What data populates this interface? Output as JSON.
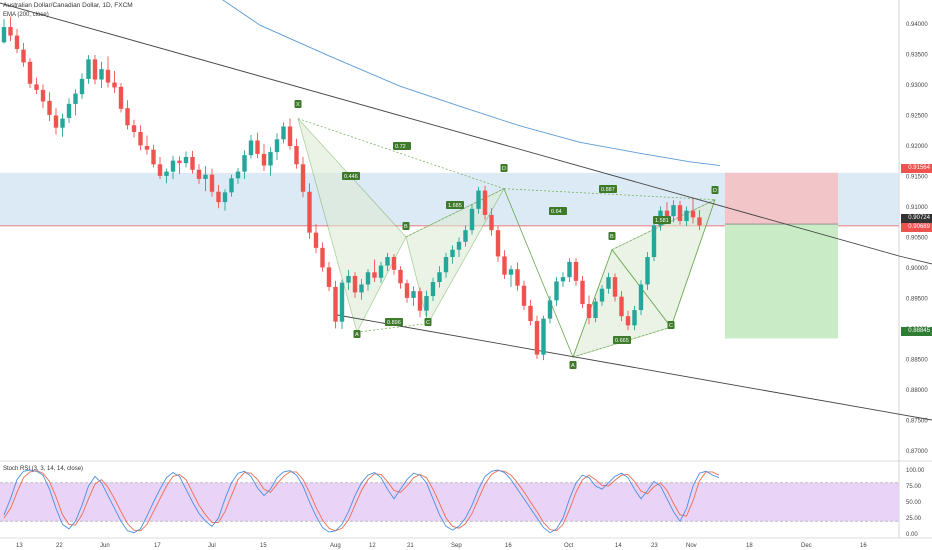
{
  "header": {
    "title": "Australian Dollar/Canadian Dollar, 1D, FXCM",
    "indicator": "EMA (200, close)"
  },
  "colors": {
    "bull": "#26a69a",
    "bear": "#ef5350",
    "ema": "#5b9bd5",
    "trendline": "#444444",
    "pattern_fill": "#dcebd3",
    "pattern_stroke": "#6aa84f",
    "label_bg": "#3d7a2a",
    "zone": "#d6e6f5",
    "stop": "#f2c5c8",
    "target": "#c9ecc6",
    "rsi_k": "#4a90e2",
    "rsi_d": "#ef6c50",
    "rsi_band": "#e4c8f5"
  },
  "chart_data": {
    "type": "candlestick",
    "title": "Australian Dollar/Canadian Dollar, 1D, FXCM",
    "x_ticks": [
      "13",
      "22",
      "Jun",
      "17",
      "Jul",
      "15",
      "Aug",
      "12",
      "21",
      "Sep",
      "16",
      "Oct",
      "14",
      "23",
      "Nov",
      "18",
      "Dec",
      "16"
    ],
    "y_ticks": [
      "0.94000",
      "0.93500",
      "0.93000",
      "0.92500",
      "0.92000",
      "0.91500",
      "0.91000",
      "0.90500",
      "0.90000",
      "0.89500",
      "0.89000",
      "0.88500",
      "0.88000",
      "0.87500",
      "0.87000"
    ],
    "ylim": [
      0.8667,
      0.9425
    ],
    "price_labels": [
      {
        "value": "0.91564",
        "color": "#ef5350"
      },
      {
        "value": "0.90724",
        "color": "#333333"
      },
      {
        "value": "0.90689",
        "color": "#ef5350"
      },
      {
        "value": "0.88845",
        "color": "#2e7d32"
      }
    ],
    "candles": [
      [
        0.937,
        0.9408,
        0.9368,
        0.9395
      ],
      [
        0.9395,
        0.9412,
        0.9372,
        0.9381
      ],
      [
        0.9381,
        0.9392,
        0.9352,
        0.9359
      ],
      [
        0.9358,
        0.9369,
        0.933,
        0.9337
      ],
      [
        0.9338,
        0.9344,
        0.9295,
        0.9302
      ],
      [
        0.9301,
        0.9312,
        0.9285,
        0.9292
      ],
      [
        0.9292,
        0.9301,
        0.9262,
        0.9273
      ],
      [
        0.9274,
        0.9288,
        0.9241,
        0.9251
      ],
      [
        0.925,
        0.9262,
        0.9219,
        0.923
      ],
      [
        0.923,
        0.9253,
        0.9215,
        0.9245
      ],
      [
        0.9246,
        0.9278,
        0.9238,
        0.9269
      ],
      [
        0.9269,
        0.9293,
        0.925,
        0.9286
      ],
      [
        0.9285,
        0.9319,
        0.9277,
        0.931
      ],
      [
        0.931,
        0.9349,
        0.9302,
        0.9342
      ],
      [
        0.9342,
        0.9349,
        0.9301,
        0.9309
      ],
      [
        0.9309,
        0.9338,
        0.9295,
        0.9326
      ],
      [
        0.9325,
        0.9347,
        0.9296,
        0.9304
      ],
      [
        0.9304,
        0.9323,
        0.9287,
        0.9296
      ],
      [
        0.9297,
        0.9303,
        0.9255,
        0.9261
      ],
      [
        0.9262,
        0.9275,
        0.9227,
        0.9234
      ],
      [
        0.9234,
        0.9243,
        0.9214,
        0.9223
      ],
      [
        0.9223,
        0.9234,
        0.9193,
        0.9201
      ],
      [
        0.92,
        0.9217,
        0.9186,
        0.9194
      ],
      [
        0.9194,
        0.9202,
        0.9165,
        0.917
      ],
      [
        0.917,
        0.9182,
        0.9146,
        0.9151
      ],
      [
        0.9151,
        0.9163,
        0.9139,
        0.9158
      ],
      [
        0.9158,
        0.9184,
        0.9146,
        0.9176
      ],
      [
        0.9176,
        0.9183,
        0.9154,
        0.9172
      ],
      [
        0.9172,
        0.9191,
        0.9165,
        0.9182
      ],
      [
        0.9182,
        0.9192,
        0.9155,
        0.9161
      ],
      [
        0.9161,
        0.917,
        0.9138,
        0.9146
      ],
      [
        0.9146,
        0.9167,
        0.9126,
        0.9153
      ],
      [
        0.9153,
        0.9163,
        0.9117,
        0.9125
      ],
      [
        0.9125,
        0.9136,
        0.9098,
        0.9108
      ],
      [
        0.9108,
        0.9129,
        0.9094,
        0.9124
      ],
      [
        0.9124,
        0.9153,
        0.9117,
        0.9147
      ],
      [
        0.9147,
        0.9164,
        0.9138,
        0.9158
      ],
      [
        0.9158,
        0.9193,
        0.9146,
        0.9185
      ],
      [
        0.9185,
        0.9218,
        0.9179,
        0.9209
      ],
      [
        0.9209,
        0.9222,
        0.918,
        0.9187
      ],
      [
        0.9187,
        0.9203,
        0.9159,
        0.9168
      ],
      [
        0.9168,
        0.9198,
        0.9151,
        0.919
      ],
      [
        0.919,
        0.9221,
        0.9177,
        0.9211
      ],
      [
        0.9211,
        0.9239,
        0.9204,
        0.9232
      ],
      [
        0.9232,
        0.9245,
        0.9194,
        0.92
      ],
      [
        0.92,
        0.9212,
        0.9163,
        0.917
      ],
      [
        0.917,
        0.9182,
        0.9116,
        0.9125
      ],
      [
        0.9125,
        0.9139,
        0.9048,
        0.9058
      ],
      [
        0.9058,
        0.9072,
        0.9024,
        0.9033
      ],
      [
        0.9033,
        0.9042,
        0.8994,
        0.9001
      ],
      [
        0.9001,
        0.901,
        0.8962,
        0.8969
      ],
      [
        0.8969,
        0.8979,
        0.8901,
        0.8912
      ],
      [
        0.8912,
        0.8981,
        0.89,
        0.8976
      ],
      [
        0.8976,
        0.8997,
        0.8964,
        0.8987
      ],
      [
        0.8987,
        0.8993,
        0.8951,
        0.896
      ],
      [
        0.896,
        0.8982,
        0.8948,
        0.8973
      ],
      [
        0.8973,
        0.8998,
        0.8963,
        0.8993
      ],
      [
        0.8993,
        0.9014,
        0.8977,
        0.8984
      ],
      [
        0.8984,
        0.901,
        0.8976,
        0.9004
      ],
      [
        0.9004,
        0.9025,
        0.8995,
        0.9018
      ],
      [
        0.9018,
        0.9023,
        0.8989,
        0.8997
      ],
      [
        0.8997,
        0.9003,
        0.8966,
        0.8975
      ],
      [
        0.8975,
        0.8981,
        0.8943,
        0.8951
      ],
      [
        0.8951,
        0.897,
        0.8938,
        0.8962
      ],
      [
        0.8962,
        0.8968,
        0.8919,
        0.893
      ],
      [
        0.893,
        0.8963,
        0.892,
        0.8954
      ],
      [
        0.8954,
        0.8984,
        0.8946,
        0.8977
      ],
      [
        0.8977,
        0.9003,
        0.8968,
        0.8993
      ],
      [
        0.8993,
        0.9025,
        0.8984,
        0.9018
      ],
      [
        0.9018,
        0.9037,
        0.9007,
        0.903
      ],
      [
        0.903,
        0.905,
        0.9018,
        0.9043
      ],
      [
        0.9043,
        0.907,
        0.9035,
        0.9062
      ],
      [
        0.9062,
        0.9104,
        0.9055,
        0.9097
      ],
      [
        0.9097,
        0.9133,
        0.9089,
        0.9127
      ],
      [
        0.9127,
        0.9135,
        0.9079,
        0.9087
      ],
      [
        0.9087,
        0.9098,
        0.9053,
        0.9062
      ],
      [
        0.9062,
        0.9069,
        0.901,
        0.9019
      ],
      [
        0.9019,
        0.9029,
        0.8982,
        0.8989
      ],
      [
        0.8989,
        0.9004,
        0.8969,
        0.8998
      ],
      [
        0.8998,
        0.9009,
        0.8963,
        0.8971
      ],
      [
        0.8971,
        0.8979,
        0.8931,
        0.8938
      ],
      [
        0.8938,
        0.8948,
        0.8906,
        0.8913
      ],
      [
        0.8913,
        0.8922,
        0.8851,
        0.8858
      ],
      [
        0.8858,
        0.8922,
        0.8849,
        0.8917
      ],
      [
        0.8917,
        0.8954,
        0.8909,
        0.8947
      ],
      [
        0.8947,
        0.8985,
        0.8938,
        0.8978
      ],
      [
        0.8978,
        0.8993,
        0.8969,
        0.8985
      ],
      [
        0.8985,
        0.9016,
        0.8977,
        0.901
      ],
      [
        0.901,
        0.9016,
        0.8971,
        0.8979
      ],
      [
        0.8979,
        0.8987,
        0.8934,
        0.8941
      ],
      [
        0.8941,
        0.8955,
        0.8908,
        0.8918
      ],
      [
        0.8918,
        0.8951,
        0.8911,
        0.8945
      ],
      [
        0.8945,
        0.8972,
        0.8938,
        0.8966
      ],
      [
        0.8966,
        0.8992,
        0.8958,
        0.8985
      ],
      [
        0.8985,
        0.8991,
        0.8945,
        0.8953
      ],
      [
        0.8953,
        0.8962,
        0.8913,
        0.8921
      ],
      [
        0.8921,
        0.893,
        0.8898,
        0.8906
      ],
      [
        0.8906,
        0.8938,
        0.8898,
        0.8931
      ],
      [
        0.8931,
        0.898,
        0.8923,
        0.8973
      ],
      [
        0.8973,
        0.9026,
        0.8964,
        0.9018
      ],
      [
        0.9018,
        0.9078,
        0.9011,
        0.907
      ],
      [
        0.907,
        0.9101,
        0.9061,
        0.9094
      ],
      [
        0.9094,
        0.9108,
        0.9079,
        0.9085
      ],
      [
        0.9085,
        0.9111,
        0.9075,
        0.9103
      ],
      [
        0.9103,
        0.911,
        0.9071,
        0.9077
      ],
      [
        0.9077,
        0.9101,
        0.9069,
        0.9094
      ],
      [
        0.9094,
        0.9114,
        0.9073,
        0.9083
      ],
      [
        0.9083,
        0.9095,
        0.9062,
        0.907
      ]
    ],
    "ema200": [
      [
        0.9328,
        0.9465
      ],
      [
        0.9364,
        0.9398
      ],
      [
        0.9402,
        0.9347
      ],
      [
        0.945,
        0.9298
      ],
      [
        0.948,
        0.9265
      ],
      [
        0.951,
        0.9233
      ],
      [
        0.9528,
        0.9206
      ],
      [
        0.9548,
        0.9188
      ],
      [
        0.9563,
        0.9174
      ],
      [
        0.9575,
        0.9168
      ]
    ],
    "patterns": [
      {
        "labels": [
          "X",
          "A",
          "B",
          "C",
          "D"
        ],
        "ratios": [
          "0.446",
          "1.685",
          "0.896"
        ]
      },
      {
        "labels": [
          "X",
          "A",
          "B",
          "C",
          "D"
        ],
        "ratios": [
          "0.72",
          "0.64",
          "1.581",
          "0.665",
          "0.887"
        ]
      }
    ],
    "stoch_rsi": {
      "title": "Stoch RSI (3, 3, 14, 14, close)",
      "ticks": [
        "100.00",
        "75.00",
        "50.00",
        "25.00",
        "0.00"
      ],
      "k": [
        30,
        55,
        85,
        98,
        100,
        98,
        92,
        70,
        40,
        15,
        8,
        20,
        45,
        75,
        90,
        80,
        60,
        40,
        20,
        5,
        2,
        8,
        28,
        50,
        70,
        88,
        96,
        90,
        70,
        50,
        32,
        20,
        12,
        25,
        55,
        80,
        95,
        98,
        90,
        72,
        60,
        70,
        88,
        97,
        99,
        92,
        75,
        50,
        28,
        10,
        3,
        5,
        15,
        35,
        60,
        80,
        92,
        96,
        88,
        70,
        55,
        70,
        85,
        95,
        92,
        80,
        55,
        30,
        12,
        6,
        12,
        25,
        45,
        70,
        90,
        98,
        100,
        96,
        85,
        70,
        55,
        40,
        25,
        10,
        2,
        8,
        25,
        55,
        80,
        92,
        88,
        75,
        70,
        80,
        90,
        95,
        88,
        70,
        55,
        68,
        82,
        75,
        55,
        35,
        20,
        40,
        75,
        95,
        98,
        92,
        88
      ],
      "d": [
        25,
        40,
        65,
        88,
        97,
        99,
        95,
        82,
        58,
        30,
        15,
        14,
        30,
        55,
        78,
        85,
        73,
        55,
        35,
        16,
        6,
        5,
        15,
        35,
        55,
        75,
        90,
        93,
        85,
        65,
        45,
        30,
        18,
        18,
        35,
        60,
        85,
        96,
        95,
        85,
        70,
        65,
        78,
        90,
        97,
        97,
        85,
        65,
        42,
        22,
        9,
        5,
        9,
        22,
        45,
        68,
        85,
        94,
        93,
        82,
        68,
        65,
        75,
        88,
        93,
        88,
        70,
        48,
        25,
        12,
        9,
        16,
        32,
        55,
        78,
        93,
        99,
        98,
        92,
        80,
        66,
        50,
        35,
        18,
        7,
        5,
        15,
        38,
        65,
        85,
        92,
        85,
        76,
        75,
        84,
        92,
        93,
        82,
        67,
        63,
        74,
        80,
        68,
        48,
        30,
        28,
        52,
        83,
        97,
        97,
        92
      ]
    }
  }
}
